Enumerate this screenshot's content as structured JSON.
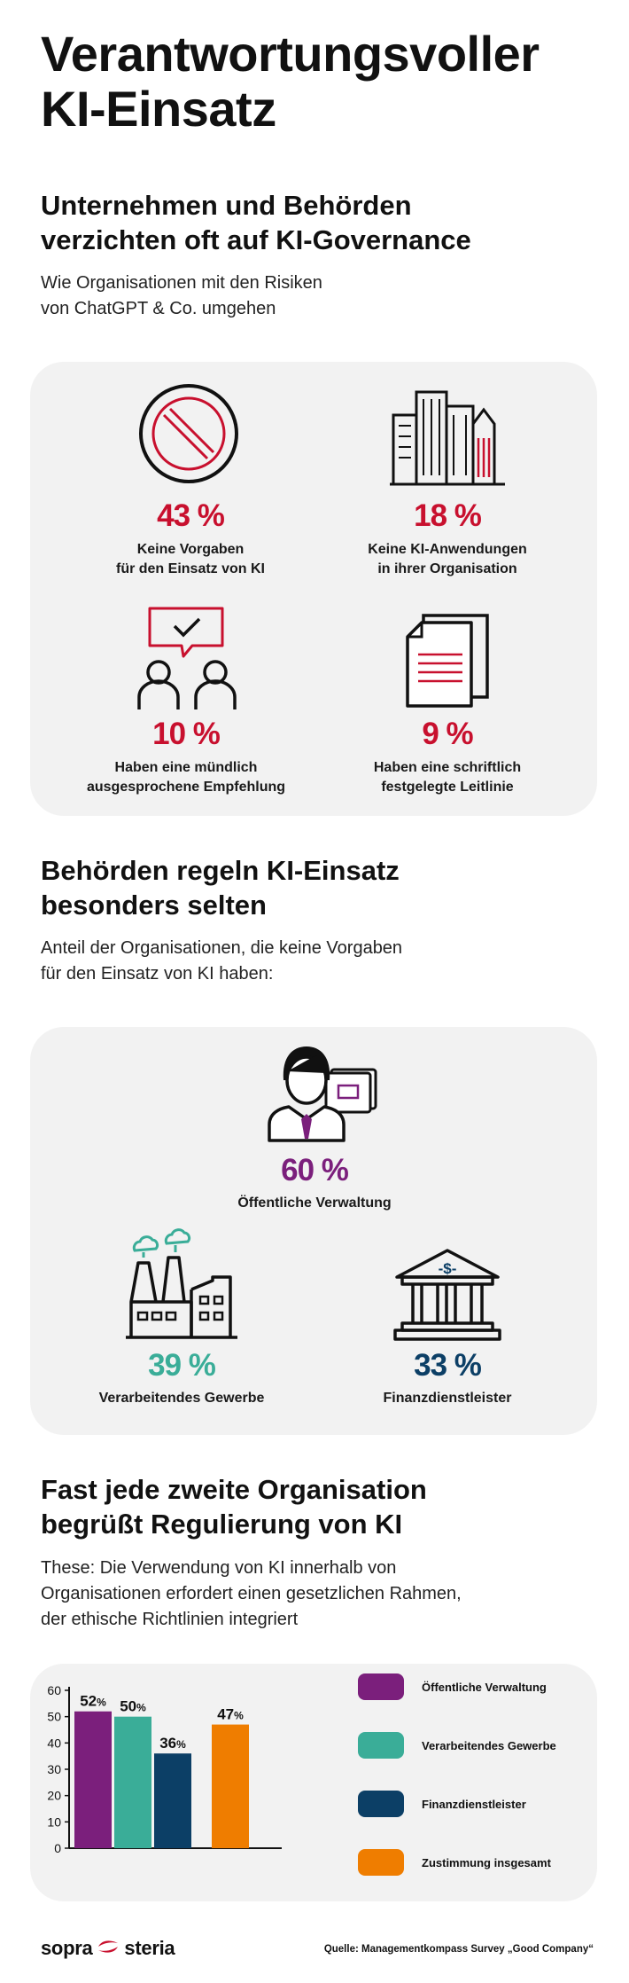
{
  "header": {
    "title_line1": "Verantwortungsvoller",
    "title_line2": "KI-Einsatz"
  },
  "section1": {
    "heading_line1": "Unternehmen und Behörden",
    "heading_line2": "verzichten oft auf KI-Governance",
    "sub_line1": "Wie Organisationen mit den Risiken",
    "sub_line2": "von ChatGPT & Co. umgehen",
    "stats": [
      {
        "value": "43 %",
        "label_line1": "Keine Vorgaben",
        "label_line2": "für den Einsatz von KI",
        "icon": "prohibited-icon"
      },
      {
        "value": "18 %",
        "label_line1": "Keine KI-Anwendungen",
        "label_line2": "in ihrer Organisation",
        "icon": "city-buildings-icon"
      },
      {
        "value": "10 %",
        "label_line1": "Haben eine mündlich",
        "label_line2": "ausgesprochene Empfehlung",
        "icon": "people-speech-icon"
      },
      {
        "value": "9 %",
        "label_line1": "Haben eine schriftlich",
        "label_line2": "festgelegte Leitlinie",
        "icon": "documents-icon"
      }
    ]
  },
  "section2": {
    "heading_line1": "Behörden regeln KI-Einsatz",
    "heading_line2": "besonders selten",
    "sub_line1": "Anteil der Organisationen, die keine Vorgaben",
    "sub_line2": "für den Einsatz von KI haben:",
    "stats": [
      {
        "value": "60 %",
        "label": "Öffentliche Verwaltung",
        "color": "#7b1f7c",
        "icon": "civil-servant-icon"
      },
      {
        "value": "39 %",
        "label": "Verarbeitendes Gewerbe",
        "color": "#3aad98",
        "icon": "factory-icon"
      },
      {
        "value": "33 %",
        "label": "Finanzdienstleister",
        "color": "#0c3f66",
        "icon": "bank-icon"
      }
    ]
  },
  "section3": {
    "heading_line1": "Fast jede zweite Organisation",
    "heading_line2": "begrüßt Regulierung von KI",
    "sub_line1": "These: Die Verwendung von KI innerhalb von",
    "sub_line2": "Organisationen erfordert einen gesetzlichen Rahmen,",
    "sub_line3": "der ethische Richtlinien integriert"
  },
  "chart_data": {
    "type": "bar",
    "title": "",
    "xlabel": "",
    "ylabel": "",
    "ylim": [
      0,
      60
    ],
    "yticks": [
      0,
      10,
      20,
      30,
      40,
      50,
      60
    ],
    "grid": false,
    "legend_position": "right",
    "categories": [
      "Öffentliche Verwaltung",
      "Verarbeitendes Gewerbe",
      "Finanzdienstleister",
      "Zustimmung insgesamt"
    ],
    "values": [
      52,
      50,
      36,
      47
    ],
    "value_labels": [
      "52",
      "50",
      "36",
      "47"
    ],
    "value_unit": "%",
    "colors": [
      "#7b1f7c",
      "#3aad98",
      "#0c3f66",
      "#ef7d00"
    ]
  },
  "footer": {
    "brand_left": "sopra",
    "brand_right": "steria",
    "source": "Quelle: Managementkompass Survey „Good Company“"
  },
  "colors": {
    "accent_red": "#c8102e",
    "purple": "#7b1f7c",
    "teal": "#3aad98",
    "navy": "#0c3f66",
    "orange": "#ef7d00",
    "card_bg": "#f2f2f2"
  }
}
